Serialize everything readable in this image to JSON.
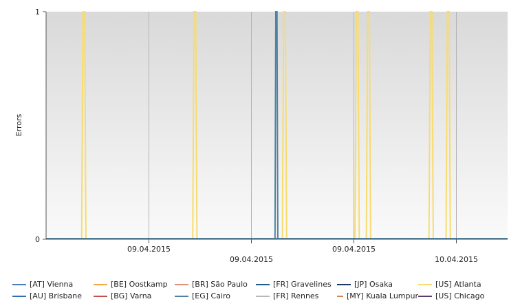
{
  "chart_data": {
    "type": "line",
    "title": "",
    "xlabel": "",
    "ylabel": "Errors",
    "ylim": [
      0,
      1
    ],
    "y_ticks": [
      "0",
      "1"
    ],
    "x_range": [
      "2015-04-09T00:00",
      "2015-04-10T00:00"
    ],
    "x_tick_labels": [
      {
        "label": "09.04.2015",
        "t": "2015-04-09T06:00",
        "row": 1
      },
      {
        "label": "09.04.2015",
        "t": "2015-04-09T12:00",
        "row": 2
      },
      {
        "label": "09.04.2015",
        "t": "2015-04-09T18:00",
        "row": 1
      },
      {
        "label": "10.04.2015",
        "t": "2015-04-10T00:00",
        "row": 2
      }
    ],
    "grid": true,
    "legend_position": "bottom",
    "series": [
      {
        "name": "[AT] Vienna",
        "color": "#4a7ebb",
        "spikes": []
      },
      {
        "name": "[AU] Brisbane",
        "color": "#2f6fb5",
        "spikes": []
      },
      {
        "name": "[BE] Oostkamp",
        "color": "#f4a640",
        "spikes": []
      },
      {
        "name": "[BG] Varna",
        "color": "#c0504d",
        "spikes": []
      },
      {
        "name": "[BR] São Paulo",
        "color": "#e0907a",
        "spikes": []
      },
      {
        "name": "[EG] Cairo",
        "color": "#4f81a0",
        "spikes": [
          {
            "start": "2015-04-09T13:24",
            "end": "2015-04-09T13:34"
          }
        ]
      },
      {
        "name": "[FR] Gravelines",
        "color": "#1f5c8b",
        "spikes": []
      },
      {
        "name": "[FR] Rennes",
        "color": "#b8b8b8",
        "spikes": []
      },
      {
        "name": "[JP] Osaka",
        "color": "#1f3864",
        "spikes": []
      },
      {
        "name": "[MY] Kuala Lumpur",
        "color": "#d7844a",
        "spikes": []
      },
      {
        "name": "[US] Atlanta",
        "color": "#f7dc6f",
        "spikes": [
          {
            "start": "2015-04-09T02:05",
            "end": "2015-04-09T02:20"
          },
          {
            "start": "2015-04-09T08:35",
            "end": "2015-04-09T08:50"
          },
          {
            "start": "2015-04-09T13:50",
            "end": "2015-04-09T14:05"
          },
          {
            "start": "2015-04-09T18:05",
            "end": "2015-04-09T18:20"
          },
          {
            "start": "2015-04-09T18:45",
            "end": "2015-04-09T19:00"
          },
          {
            "start": "2015-04-09T22:25",
            "end": "2015-04-09T22:40"
          },
          {
            "start": "2015-04-09T23:25",
            "end": "2015-04-09T23:40"
          }
        ]
      },
      {
        "name": "[US] Chicago",
        "color": "#5b3a6e",
        "spikes": []
      }
    ]
  }
}
